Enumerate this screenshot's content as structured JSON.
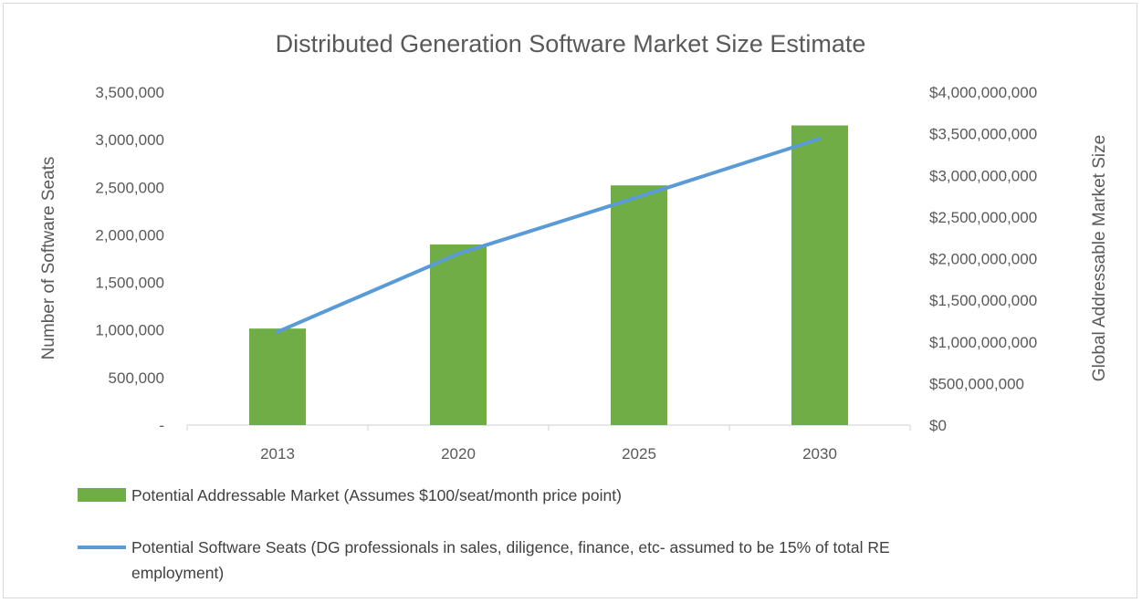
{
  "chart_data": {
    "type": "bar+line",
    "title": "Distributed Generation Software Market Size Estimate",
    "categories": [
      "2013",
      "2020",
      "2025",
      "2030"
    ],
    "y_left": {
      "label": "Number of Software Seats",
      "range": [
        0,
        3500000
      ],
      "ticks": [
        0,
        500000,
        1000000,
        1500000,
        2000000,
        2500000,
        3000000,
        3500000
      ],
      "tick_labels": [
        "-",
        "500,000",
        "1,000,000",
        "1,500,000",
        "2,000,000",
        "2,500,000",
        "3,000,000",
        "3,500,000"
      ]
    },
    "y_right": {
      "label": "Global Addressable Market Size",
      "range": [
        0,
        4000000000
      ],
      "ticks": [
        0,
        500000000,
        1000000000,
        1500000000,
        2000000000,
        2500000000,
        3000000000,
        3500000000,
        4000000000
      ],
      "tick_labels": [
        "$0",
        "$500,000,000",
        "$1,000,000,000",
        "$1,500,000,000",
        "$2,000,000,000",
        "$2,500,000,000",
        "$3,000,000,000",
        "$3,500,000,000",
        "$4,000,000,000"
      ]
    },
    "series": [
      {
        "name": "Potential Addressable Market (Assumes $100/seat/month price point)",
        "type": "bar",
        "axis": "right",
        "color": "#70ad47",
        "values": [
          1160000000,
          2170000000,
          2880000000,
          3600000000
        ]
      },
      {
        "name": "Potential Software Seats (DG professionals in sales, diligence, finance, etc- assumed to be 15% of total RE employment)",
        "type": "line",
        "axis": "left",
        "color": "#5b9bd5",
        "values": [
          980000,
          1800000,
          2400000,
          3010000
        ]
      }
    ],
    "legend": {
      "position": "bottom",
      "entries": [
        "Potential Addressable Market (Assumes $100/seat/month price point)",
        "Potential Software Seats (DG professionals in sales, diligence, finance, etc- assumed to be 15% of total RE",
        "employment)"
      ]
    }
  }
}
